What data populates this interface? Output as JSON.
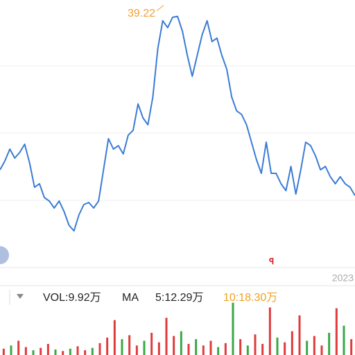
{
  "chart_data": [
    {
      "type": "line",
      "color": "#3a7bd5",
      "ylim": [
        15,
        40.8
      ],
      "values": [
        24.43,
        25.29,
        26.43,
        25.56,
        26.1,
        26.9,
        25.09,
        22.75,
        23.09,
        21.75,
        21.42,
        20.75,
        21.42,
        20.41,
        19.08,
        18.54,
        20.08,
        21.08,
        21.28,
        20.75,
        21.42,
        24.43,
        27.43,
        26.43,
        26.76,
        25.96,
        27.77,
        28.24,
        30.78,
        29.44,
        28.77,
        31.44,
        36.12,
        38.8,
        38.13,
        39.13,
        39.22,
        37.79,
        35.45,
        33.45,
        35.45,
        37.46,
        38.8,
        36.79,
        37.13,
        35.45,
        34.12,
        31.44,
        30.11,
        29.77,
        28.77,
        27.1,
        25.43,
        24.09,
        27.1,
        24.09,
        24.09,
        23.09,
        22.42,
        24.76,
        22.09,
        24.43,
        27.1,
        26.76,
        25.76,
        24.43,
        24.76,
        23.76,
        23.09,
        23.76,
        23.09,
        22.75,
        21.95
      ],
      "annotation": {
        "text": "39.22",
        "color": "#f0a030"
      },
      "x_end_label": "2023"
    },
    {
      "type": "bar",
      "ylim": [
        0,
        70
      ],
      "label": "VOL:9.92万",
      "ma_label": "MA",
      "ma_items": [
        {
          "text": "5:12.29万",
          "color": "#222222"
        },
        {
          "text": "10:18.30万",
          "color": "#f0a020"
        }
      ],
      "values": [
        8,
        12,
        18,
        10,
        6,
        9,
        14,
        7,
        5,
        8,
        11,
        6,
        9,
        15,
        22,
        44,
        20,
        25,
        12,
        18,
        28,
        16,
        47,
        24,
        30,
        14,
        20,
        12,
        18,
        10,
        15,
        66,
        20,
        12,
        26,
        14,
        60,
        22,
        16,
        30,
        50,
        18,
        24,
        12,
        28,
        59,
        37,
        20
      ],
      "colors": [
        "#e03b3b",
        "#3aa845",
        "#e03b3b",
        "#e03b3b",
        "#3aa845",
        "#e03b3b",
        "#e03b3b",
        "#3aa845",
        "#e03b3b",
        "#3aa845",
        "#e03b3b",
        "#e03b3b",
        "#3aa845",
        "#e03b3b",
        "#e03b3b",
        "#e03b3b",
        "#3aa845",
        "#e03b3b",
        "#e03b3b",
        "#3aa845",
        "#e03b3b",
        "#e03b3b",
        "#e03b3b",
        "#e03b3b",
        "#3aa845",
        "#e03b3b",
        "#3aa845",
        "#e03b3b",
        "#e03b3b",
        "#3aa845",
        "#e03b3b",
        "#3aa845",
        "#e03b3b",
        "#3aa845",
        "#e03b3b",
        "#e03b3b",
        "#e03b3b",
        "#3aa845",
        "#e03b3b",
        "#e03b3b",
        "#e03b3b",
        "#3aa845",
        "#e03b3b",
        "#e03b3b",
        "#3aa845",
        "#e03b3b",
        "#3aa845",
        "#e03b3b"
      ]
    }
  ]
}
